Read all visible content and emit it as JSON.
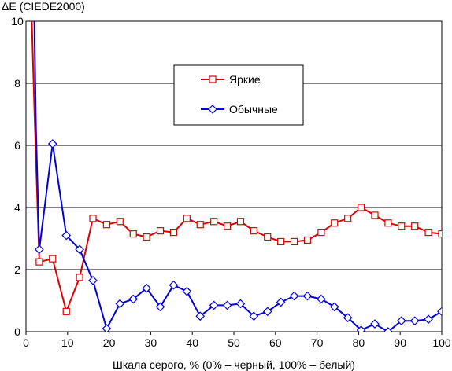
{
  "chart_data": {
    "type": "line",
    "title": "",
    "ylabel": "ΔE (CIEDE2000)",
    "xlabel": "Шкала серого, % (0% – черный, 100% – белый)",
    "xlim": [
      0,
      100
    ],
    "ylim": [
      0,
      10
    ],
    "xticks": [
      "0",
      "10",
      "20",
      "30",
      "40",
      "50",
      "60",
      "70",
      "80",
      "90",
      "100"
    ],
    "yticks": [
      "0",
      "2",
      "4",
      "6",
      "8",
      "10"
    ],
    "grid": "horizontal",
    "legend_position": "upper-center",
    "series": [
      {
        "name": "Яркие",
        "color": "#dd0000",
        "marker": "square",
        "x": [
          3.2,
          6.4,
          9.7,
          12.9,
          16.1,
          19.4,
          22.6,
          25.8,
          29.0,
          32.3,
          35.5,
          38.7,
          41.9,
          45.2,
          48.4,
          51.6,
          54.8,
          58.1,
          61.3,
          64.5,
          67.7,
          71.0,
          74.2,
          77.4,
          80.6,
          83.9,
          87.1,
          90.3,
          93.5,
          96.8,
          100
        ],
        "y": [
          2.25,
          2.35,
          0.65,
          1.75,
          3.65,
          3.45,
          3.55,
          3.15,
          3.05,
          3.25,
          3.2,
          3.65,
          3.45,
          3.55,
          3.4,
          3.55,
          3.25,
          3.05,
          2.9,
          2.9,
          2.95,
          3.2,
          3.5,
          3.65,
          4.0,
          3.75,
          3.5,
          3.4,
          3.4,
          3.2,
          3.15
        ]
      },
      {
        "name": "Обычные",
        "color": "#0000dd",
        "marker": "diamond",
        "x": [
          3.2,
          6.4,
          9.7,
          12.9,
          16.1,
          19.4,
          22.6,
          25.8,
          29.0,
          32.3,
          35.5,
          38.7,
          41.9,
          45.2,
          48.4,
          51.6,
          54.8,
          58.1,
          61.3,
          64.5,
          67.7,
          71.0,
          74.2,
          77.4,
          80.6,
          83.9,
          87.1,
          90.3,
          93.5,
          96.8,
          100
        ],
        "y": [
          2.65,
          6.05,
          3.1,
          2.65,
          1.65,
          0.1,
          0.9,
          1.05,
          1.4,
          0.8,
          1.5,
          1.3,
          0.5,
          0.85,
          0.85,
          0.9,
          0.5,
          0.65,
          0.95,
          1.15,
          1.15,
          1.05,
          0.8,
          0.45,
          0.05,
          0.25,
          0.0,
          0.35,
          0.35,
          0.4,
          0.65
        ]
      }
    ],
    "offscale_note": "Both series start far above 10 near x = 0–3 %; the lines enter from above the plot."
  }
}
